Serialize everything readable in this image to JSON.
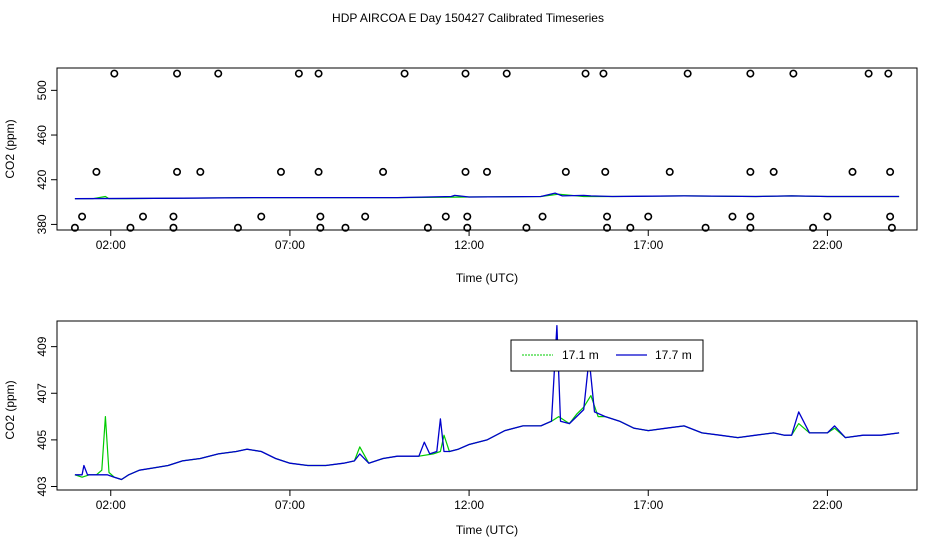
{
  "title": "HDP AIRCOA E  Day 150427  Calibrated Timeseries",
  "colors": {
    "green": "#00cc00",
    "blue": "#0000cc",
    "points": "#000000"
  },
  "chart_data": [
    {
      "type": "line",
      "panel": "top",
      "xlabel": "Time (UTC)",
      "ylabel": "CO2 (ppm)",
      "xlim": [
        0.5,
        24.5
      ],
      "ylim": [
        375,
        520
      ],
      "xticks": [
        2,
        7,
        12,
        17,
        22
      ],
      "xtick_labels": [
        "02:00",
        "07:00",
        "12:00",
        "17:00",
        "22:00"
      ],
      "yticks": [
        380,
        420,
        460,
        500
      ],
      "ytick_labels": [
        "380",
        "420",
        "460",
        "500"
      ],
      "legend": "none",
      "series": [
        {
          "color": "green",
          "x": [
            1.0,
            1.5,
            1.85,
            1.95,
            2.2,
            4.0,
            6.0,
            8.0,
            10.0,
            12.0,
            14.0,
            14.5,
            15.2,
            16.0,
            18.0,
            20.0,
            21.0,
            22.0,
            24.0
          ],
          "y": [
            403,
            403,
            405,
            403,
            403,
            403.5,
            404,
            404,
            404,
            404.5,
            405,
            407,
            405,
            405,
            405.5,
            405,
            405.5,
            405,
            405
          ]
        },
        {
          "color": "blue",
          "x": [
            1.0,
            4.0,
            6.0,
            8.0,
            10.0,
            11.5,
            11.6,
            12.0,
            14.0,
            14.4,
            14.6,
            15.2,
            15.4,
            16.0,
            18.0,
            20.0,
            21.0,
            22.0,
            24.0
          ],
          "y": [
            403,
            403.5,
            404,
            404,
            404,
            405,
            406,
            404.5,
            405,
            408,
            405.5,
            406,
            405.5,
            405,
            405.5,
            405,
            405.5,
            405,
            405
          ]
        }
      ],
      "points": {
        "x": [
          2.1,
          3.85,
          5.0,
          7.25,
          7.8,
          10.2,
          11.9,
          13.05,
          15.25,
          15.75,
          18.1,
          19.85,
          21.05,
          23.15,
          23.7,
          1.6,
          3.85,
          4.5,
          6.75,
          7.8,
          9.6,
          11.9,
          12.5,
          14.7,
          15.8,
          17.6,
          19.85,
          20.5,
          22.7,
          23.75,
          1.2,
          2.9,
          3.75,
          6.2,
          7.85,
          9.1,
          11.35,
          11.95,
          14.05,
          15.85,
          17.0,
          19.35,
          19.85,
          22.0,
          23.75,
          1.0,
          2.55,
          3.75,
          5.55,
          7.85,
          8.55,
          10.85,
          11.95,
          13.6,
          15.85,
          16.5,
          18.6,
          19.85,
          21.6,
          23.8
        ],
        "y": [
          515,
          515,
          515,
          515,
          515,
          515,
          515,
          515,
          515,
          515,
          515,
          515,
          515,
          515,
          515,
          427,
          427,
          427,
          427,
          427,
          427,
          427,
          427,
          427,
          427,
          427,
          427,
          427,
          427,
          427,
          387,
          387,
          387,
          387,
          387,
          387,
          387,
          387,
          387,
          387,
          387,
          387,
          387,
          387,
          387,
          377,
          377,
          377,
          377,
          377,
          377,
          377,
          377,
          377,
          377,
          377,
          377,
          377,
          377,
          377
        ]
      }
    },
    {
      "type": "line",
      "panel": "bottom",
      "xlabel": "Time (UTC)",
      "ylabel": "CO2 (ppm)",
      "xlim": [
        0.5,
        24.5
      ],
      "ylim": [
        402.85,
        410.1
      ],
      "xticks": [
        2,
        7,
        12,
        17,
        22
      ],
      "xtick_labels": [
        "02:00",
        "07:00",
        "12:00",
        "17:00",
        "22:00"
      ],
      "yticks": [
        403,
        405,
        407,
        409
      ],
      "ytick_labels": [
        "403",
        "405",
        "407",
        "409"
      ],
      "legend": "top-center",
      "series": [
        {
          "name": "17.1 m",
          "color": "green",
          "x": [
            1.0,
            1.2,
            1.4,
            1.6,
            1.75,
            1.85,
            1.95,
            2.1,
            2.3,
            2.5,
            2.8,
            3.2,
            3.6,
            4.0,
            4.5,
            5.0,
            5.5,
            5.8,
            6.2,
            6.6,
            7.0,
            7.5,
            8.0,
            8.5,
            8.8,
            8.95,
            9.2,
            9.6,
            10.0,
            10.6,
            11.0,
            11.2,
            11.3,
            11.45,
            11.7,
            12.0,
            12.5,
            13.0,
            13.5,
            14.0,
            14.3,
            14.5,
            14.8,
            15.0,
            15.2,
            15.4,
            15.6,
            15.8,
            16.2,
            16.6,
            17.0,
            17.5,
            18.0,
            18.5,
            19.0,
            19.5,
            20.0,
            20.5,
            20.8,
            21.0,
            21.2,
            21.5,
            21.8,
            22.0,
            22.2,
            22.5,
            23.0,
            23.5,
            24.0
          ],
          "y": [
            403.5,
            403.4,
            403.5,
            403.5,
            403.7,
            406.0,
            403.6,
            403.4,
            403.3,
            403.5,
            403.7,
            403.8,
            403.9,
            404.1,
            404.2,
            404.4,
            404.5,
            404.6,
            404.5,
            404.2,
            404.0,
            403.9,
            403.9,
            404.0,
            404.1,
            404.7,
            404.0,
            404.2,
            404.3,
            404.3,
            404.4,
            404.5,
            405.2,
            404.5,
            404.6,
            404.8,
            405.0,
            405.4,
            405.6,
            405.6,
            405.8,
            406.0,
            405.7,
            406.1,
            406.4,
            406.9,
            406.0,
            406.0,
            405.8,
            405.5,
            405.4,
            405.5,
            405.6,
            405.3,
            405.2,
            405.1,
            405.2,
            405.3,
            405.2,
            405.2,
            405.7,
            405.3,
            405.3,
            405.3,
            405.5,
            405.1,
            405.2,
            405.2,
            405.3
          ]
        },
        {
          "name": "17.7 m",
          "color": "blue",
          "x": [
            1.0,
            1.2,
            1.25,
            1.35,
            1.6,
            1.9,
            2.1,
            2.3,
            2.5,
            2.8,
            3.2,
            3.6,
            4.0,
            4.5,
            5.0,
            5.5,
            5.8,
            6.2,
            6.6,
            7.0,
            7.5,
            8.0,
            8.5,
            8.8,
            8.95,
            9.2,
            9.6,
            10.0,
            10.6,
            10.75,
            10.9,
            11.1,
            11.2,
            11.3,
            11.45,
            11.7,
            12.0,
            12.5,
            13.0,
            13.5,
            14.0,
            14.3,
            14.45,
            14.55,
            14.8,
            15.0,
            15.2,
            15.35,
            15.5,
            15.8,
            16.2,
            16.6,
            17.0,
            17.5,
            18.0,
            18.5,
            19.0,
            19.5,
            20.0,
            20.5,
            20.8,
            21.0,
            21.2,
            21.5,
            21.8,
            22.0,
            22.2,
            22.5,
            23.0,
            23.5,
            24.0
          ],
          "y": [
            403.5,
            403.5,
            403.9,
            403.5,
            403.5,
            403.5,
            403.4,
            403.3,
            403.5,
            403.7,
            403.8,
            403.9,
            404.1,
            404.2,
            404.4,
            404.5,
            404.6,
            404.5,
            404.2,
            404.0,
            403.9,
            403.9,
            404.0,
            404.1,
            404.4,
            404.0,
            404.2,
            404.3,
            404.3,
            404.9,
            404.4,
            404.5,
            405.9,
            404.5,
            404.5,
            404.6,
            404.8,
            405.0,
            405.4,
            405.6,
            405.6,
            405.8,
            409.9,
            405.8,
            405.7,
            406.0,
            406.3,
            408.5,
            406.2,
            406.0,
            405.8,
            405.5,
            405.4,
            405.5,
            405.6,
            405.3,
            405.2,
            405.1,
            405.2,
            405.3,
            405.2,
            405.2,
            406.2,
            405.3,
            405.3,
            405.3,
            405.6,
            405.1,
            405.2,
            405.2,
            405.3
          ]
        }
      ]
    }
  ]
}
